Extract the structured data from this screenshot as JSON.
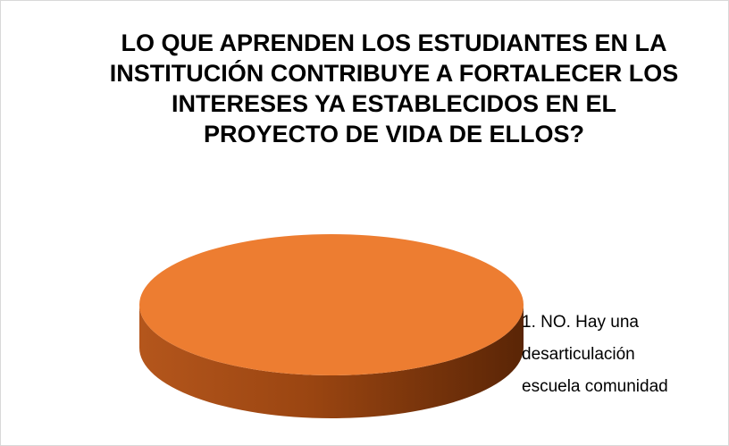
{
  "chart_data": {
    "type": "pie",
    "title": "LO QUE APRENDEN LOS ESTUDIANTES EN LA INSTITUCIÓN CONTRIBUYE A FORTALECER  LOS INTERESES YA ESTABLECIDOS EN EL PROYECTO DE VIDA DE ELLOS?",
    "categories": [
      "1. NO. Hay una desarticulación escuela comunidad"
    ],
    "values": [
      100
    ],
    "colors": [
      "#ed7d31"
    ]
  }
}
